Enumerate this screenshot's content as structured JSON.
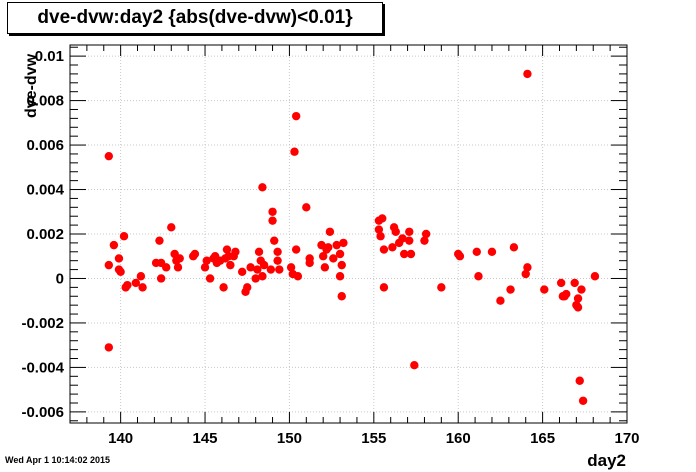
{
  "footer": {
    "timestamp": "Wed Apr  1 10:14:02 2015"
  },
  "colors": {
    "marker": "#ff0000",
    "grid": "#c8c8c8",
    "axis": "#000000"
  },
  "chart_data": {
    "type": "scatter",
    "title": "dve-dvw:day2 {abs(dve-dvw)<0.01}",
    "xlabel": "day2",
    "ylabel": "dve-dvw",
    "xlim": [
      137,
      170
    ],
    "ylim": [
      -0.0065,
      0.0105
    ],
    "xticks": [
      140,
      145,
      150,
      155,
      160,
      165,
      170
    ],
    "xtick_labels": [
      "140",
      "145",
      "150",
      "155",
      "160",
      "165",
      "170"
    ],
    "yticks": [
      -0.006,
      -0.004,
      -0.002,
      0,
      0.002,
      0.004,
      0.006,
      0.008,
      0.01
    ],
    "ytick_labels": [
      "-0.006",
      "-0.004",
      "-0.002",
      "0",
      "0.002",
      "0.004",
      "0.006",
      "0.008",
      "0.01"
    ],
    "grid": true,
    "points": [
      [
        139.3,
        0.0055
      ],
      [
        139.3,
        0.0006
      ],
      [
        139.3,
        -0.0031
      ],
      [
        139.6,
        0.0015
      ],
      [
        139.9,
        0.0009
      ],
      [
        139.9,
        0.0004
      ],
      [
        140.0,
        0.0003
      ],
      [
        140.2,
        0.0019
      ],
      [
        140.3,
        -0.0004
      ],
      [
        140.4,
        -0.0003
      ],
      [
        140.9,
        -0.0002
      ],
      [
        141.2,
        0.0001
      ],
      [
        141.3,
        -0.0004
      ],
      [
        142.1,
        0.0007
      ],
      [
        142.3,
        0.0017
      ],
      [
        142.4,
        0.0007
      ],
      [
        142.4,
        0.0
      ],
      [
        142.7,
        0.0005
      ],
      [
        143.0,
        0.0023
      ],
      [
        143.2,
        0.0011
      ],
      [
        143.3,
        0.0008
      ],
      [
        143.4,
        0.0005
      ],
      [
        143.5,
        0.0009
      ],
      [
        144.3,
        0.001
      ],
      [
        144.4,
        0.0011
      ],
      [
        145.0,
        0.0005
      ],
      [
        145.1,
        0.0008
      ],
      [
        145.3,
        0.0
      ],
      [
        145.5,
        0.0009
      ],
      [
        145.6,
        0.001
      ],
      [
        145.7,
        0.0007
      ],
      [
        145.9,
        0.0008
      ],
      [
        146.1,
        -0.0004
      ],
      [
        146.2,
        0.0009
      ],
      [
        146.3,
        0.0013
      ],
      [
        146.4,
        0.001
      ],
      [
        146.5,
        0.0006
      ],
      [
        146.7,
        0.001
      ],
      [
        146.8,
        0.0012
      ],
      [
        147.2,
        0.0003
      ],
      [
        147.4,
        -0.0006
      ],
      [
        147.5,
        -0.0004
      ],
      [
        147.7,
        0.0005
      ],
      [
        148.0,
        0.0
      ],
      [
        148.1,
        0.0004
      ],
      [
        148.2,
        0.0012
      ],
      [
        148.3,
        0.0008
      ],
      [
        148.4,
        0.0041
      ],
      [
        148.4,
        0.0001
      ],
      [
        148.5,
        0.0006
      ],
      [
        148.9,
        0.0004
      ],
      [
        149.0,
        0.003
      ],
      [
        149.0,
        0.0026
      ],
      [
        149.1,
        0.0017
      ],
      [
        149.3,
        0.0012
      ],
      [
        149.3,
        0.0008
      ],
      [
        149.4,
        0.0004
      ],
      [
        150.1,
        0.0005
      ],
      [
        150.2,
        0.0002
      ],
      [
        150.3,
        0.0057
      ],
      [
        150.4,
        0.0073
      ],
      [
        150.4,
        0.0013
      ],
      [
        150.5,
        0.0001
      ],
      [
        151.0,
        0.0032
      ],
      [
        151.2,
        0.0009
      ],
      [
        151.2,
        0.0007
      ],
      [
        151.9,
        0.0015
      ],
      [
        152.0,
        0.001
      ],
      [
        152.1,
        0.0005
      ],
      [
        152.2,
        0.0013
      ],
      [
        152.3,
        0.0014
      ],
      [
        152.4,
        0.0021
      ],
      [
        152.6,
        0.0009
      ],
      [
        152.8,
        0.0015
      ],
      [
        153.0,
        0.0011
      ],
      [
        153.0,
        0.0001
      ],
      [
        153.1,
        0.0006
      ],
      [
        153.1,
        -0.0008
      ],
      [
        153.2,
        0.0016
      ],
      [
        155.3,
        0.0026
      ],
      [
        155.3,
        0.0022
      ],
      [
        155.4,
        0.0019
      ],
      [
        155.5,
        0.0027
      ],
      [
        155.6,
        0.0013
      ],
      [
        155.6,
        -0.0004
      ],
      [
        156.1,
        0.0014
      ],
      [
        156.2,
        0.0023
      ],
      [
        156.3,
        0.0021
      ],
      [
        156.5,
        0.0016
      ],
      [
        156.7,
        0.0018
      ],
      [
        156.8,
        0.0011
      ],
      [
        157.1,
        0.0021
      ],
      [
        157.1,
        0.0017
      ],
      [
        157.2,
        0.0011
      ],
      [
        157.4,
        -0.0039
      ],
      [
        158.0,
        0.0017
      ],
      [
        158.1,
        0.002
      ],
      [
        159.0,
        -0.0004
      ],
      [
        160.0,
        0.0011
      ],
      [
        160.1,
        0.001
      ],
      [
        161.1,
        0.0012
      ],
      [
        161.2,
        0.0001
      ],
      [
        162.0,
        0.0012
      ],
      [
        162.5,
        -0.001
      ],
      [
        163.1,
        -0.0005
      ],
      [
        163.3,
        0.0014
      ],
      [
        164.0,
        0.0002
      ],
      [
        164.1,
        0.0005
      ],
      [
        164.1,
        0.0092
      ],
      [
        165.1,
        -0.0005
      ],
      [
        166.1,
        -0.0002
      ],
      [
        166.2,
        -0.0008
      ],
      [
        166.3,
        -0.0008
      ],
      [
        166.4,
        -0.0007
      ],
      [
        166.9,
        -0.0002
      ],
      [
        167.0,
        -0.0012
      ],
      [
        167.1,
        -0.0013
      ],
      [
        167.1,
        -0.0009
      ],
      [
        167.2,
        -0.0046
      ],
      [
        167.3,
        -0.0005
      ],
      [
        167.4,
        -0.0055
      ],
      [
        168.1,
        0.0001
      ]
    ]
  }
}
